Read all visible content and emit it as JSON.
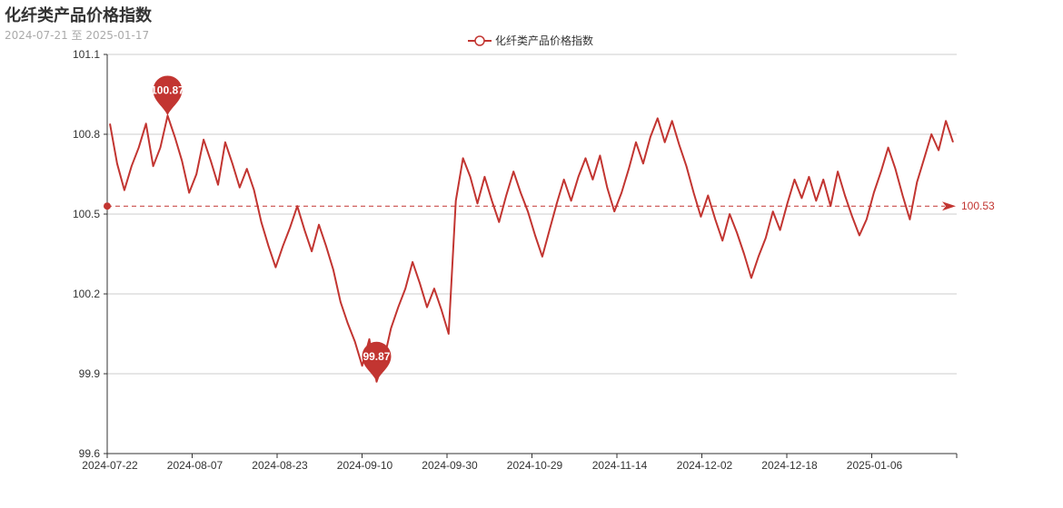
{
  "chart_data": {
    "type": "line",
    "title": "化纤类产品价格指数",
    "subtitle": "2024-07-21 至 2025-01-17",
    "series": [
      {
        "name": "化纤类产品价格指数",
        "color": "#c23531",
        "values": [
          100.84,
          100.69,
          100.59,
          100.68,
          100.75,
          100.84,
          100.68,
          100.75,
          100.87,
          100.79,
          100.7,
          100.58,
          100.65,
          100.78,
          100.7,
          100.61,
          100.77,
          100.69,
          100.6,
          100.67,
          100.59,
          100.47,
          100.38,
          100.3,
          100.38,
          100.45,
          100.53,
          100.44,
          100.36,
          100.46,
          100.38,
          100.29,
          100.17,
          100.09,
          100.02,
          99.93,
          100.03,
          99.87,
          99.95,
          100.07,
          100.15,
          100.22,
          100.32,
          100.24,
          100.15,
          100.22,
          100.14,
          100.05,
          100.55,
          100.71,
          100.64,
          100.54,
          100.64,
          100.55,
          100.47,
          100.57,
          100.66,
          100.58,
          100.51,
          100.42,
          100.34,
          100.44,
          100.54,
          100.63,
          100.55,
          100.64,
          100.71,
          100.63,
          100.72,
          100.6,
          100.51,
          100.58,
          100.67,
          100.77,
          100.69,
          100.79,
          100.86,
          100.77,
          100.85,
          100.76,
          100.68,
          100.58,
          100.49,
          100.57,
          100.48,
          100.4,
          100.5,
          100.43,
          100.35,
          100.26,
          100.34,
          100.41,
          100.51,
          100.44,
          100.54,
          100.63,
          100.56,
          100.64,
          100.55,
          100.63,
          100.53,
          100.66,
          100.57,
          100.49,
          100.42,
          100.48,
          100.58,
          100.66,
          100.75,
          100.67,
          100.57,
          100.48,
          100.62,
          100.71,
          100.8,
          100.74,
          100.85,
          100.77
        ]
      }
    ],
    "x_ticks": [
      "2024-07-22",
      "2024-08-07",
      "2024-08-23",
      "2024-09-10",
      "2024-09-30",
      "2024-10-29",
      "2024-11-14",
      "2024-12-02",
      "2024-12-18",
      "2025-01-06"
    ],
    "y_ticks": [
      "99.6",
      "99.9",
      "100.2",
      "100.5",
      "100.8",
      "101.1"
    ],
    "ylim": [
      99.6,
      101.1
    ],
    "grid": true,
    "legend": "top-center",
    "mark_points": [
      {
        "label": "100.87",
        "value": 100.87,
        "kind": "max"
      },
      {
        "label": "99.87",
        "value": 99.87,
        "kind": "min"
      }
    ],
    "mark_line": {
      "label": "100.53",
      "value": 100.53,
      "kind": "average"
    }
  }
}
